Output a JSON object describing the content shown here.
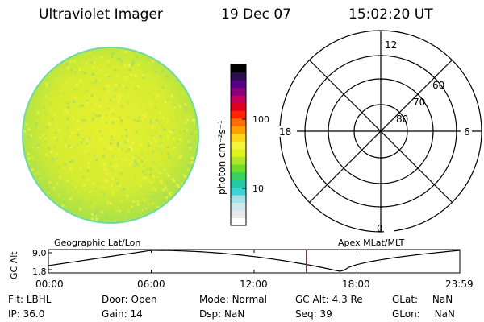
{
  "header": {
    "instrument": "Ultraviolet Imager",
    "date": "19 Dec 07",
    "time": "15:02:20 UT"
  },
  "colorbar": {
    "unit_label": "photon cm⁻²s⁻¹",
    "tick_100": "100",
    "tick_10": "10",
    "colors": [
      "#ffffff",
      "#e9e9e9",
      "#cfe8ee",
      "#a4e2ea",
      "#3ad3d6",
      "#24c9a5",
      "#39d25a",
      "#6ede2a",
      "#aee72a",
      "#dff21c",
      "#f5f53b",
      "#ffd417",
      "#ffa000",
      "#ff6b00",
      "#ff2600",
      "#e0001e",
      "#c4005a",
      "#8a007e",
      "#56008a",
      "#2a0f4e",
      "#000000"
    ]
  },
  "polar": {
    "label_12": "12",
    "label_6": "6",
    "label_18": "18",
    "label_0": "0",
    "lat_60": "60",
    "lat_70": "70",
    "lat_80": "80"
  },
  "timeline": {
    "left_title": "Geographic Lat/Lon",
    "right_title": "Apex MLat/MLT",
    "y_axis_label": "GC Alt",
    "y_top": "9.0",
    "y_bottom": "1.8",
    "ticks": [
      "00:00",
      "06:00",
      "12:00",
      "18:00",
      "23:59"
    ],
    "current_time_marker_hour": 15.04
  },
  "footer": {
    "flt_label": "Flt:",
    "flt_value": "LBHL",
    "ip_label": "IP:",
    "ip_value": "36.0",
    "door_label": "Door:",
    "door_value": "Open",
    "gain_label": "Gain:",
    "gain_value": "14",
    "mode_label": "Mode:",
    "mode_value": "Normal",
    "dsp_label": "Dsp:",
    "dsp_value": "NaN",
    "gcalt_label": "GC Alt:",
    "gcalt_value": "4.3 Re",
    "seq_label": "Seq:",
    "seq_value": "39",
    "glat_label": "GLat:",
    "glat_value": "NaN",
    "glon_label": "GLon:",
    "glon_value": "NaN"
  }
}
